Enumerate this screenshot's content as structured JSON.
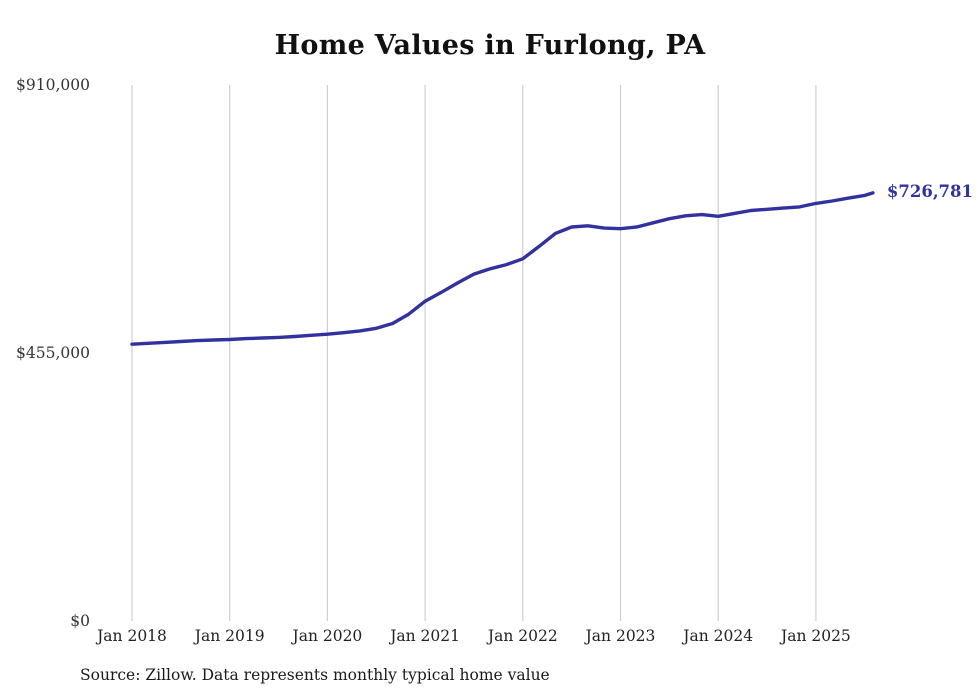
{
  "chart_data": {
    "type": "line",
    "title": "Home Values in Furlong, PA",
    "source_note": "Source: Zillow. Data represents monthly typical home value",
    "end_label": "$726,781",
    "end_value": 726781,
    "line_color": "#32329f",
    "grid_color": "#cfcfcf",
    "legend": "none",
    "grid": "vertical-only",
    "ylim": [
      0,
      910000
    ],
    "y_ticks": [
      {
        "label": "$0",
        "value": 0
      },
      {
        "label": "$455,000",
        "value": 455000
      },
      {
        "label": "$910,000",
        "value": 910000
      }
    ],
    "x_ticks": [
      {
        "label": "Jan 2018",
        "date": "2018-01"
      },
      {
        "label": "Jan 2019",
        "date": "2019-01"
      },
      {
        "label": "Jan 2020",
        "date": "2020-01"
      },
      {
        "label": "Jan 2021",
        "date": "2021-01"
      },
      {
        "label": "Jan 2022",
        "date": "2022-01"
      },
      {
        "label": "Jan 2023",
        "date": "2023-01"
      },
      {
        "label": "Jan 2024",
        "date": "2024-01"
      },
      {
        "label": "Jan 2025",
        "date": "2025-01"
      }
    ],
    "series": [
      {
        "name": "Monthly typical home value",
        "points": [
          {
            "date": "2018-01",
            "value": 470000
          },
          {
            "date": "2018-03",
            "value": 471500
          },
          {
            "date": "2018-05",
            "value": 473000
          },
          {
            "date": "2018-07",
            "value": 474500
          },
          {
            "date": "2018-09",
            "value": 476000
          },
          {
            "date": "2018-11",
            "value": 477000
          },
          {
            "date": "2019-01",
            "value": 478000
          },
          {
            "date": "2019-03",
            "value": 479500
          },
          {
            "date": "2019-05",
            "value": 480500
          },
          {
            "date": "2019-07",
            "value": 481500
          },
          {
            "date": "2019-09",
            "value": 483000
          },
          {
            "date": "2019-11",
            "value": 485000
          },
          {
            "date": "2020-01",
            "value": 487000
          },
          {
            "date": "2020-03",
            "value": 489500
          },
          {
            "date": "2020-05",
            "value": 492500
          },
          {
            "date": "2020-07",
            "value": 497000
          },
          {
            "date": "2020-09",
            "value": 505000
          },
          {
            "date": "2020-11",
            "value": 521000
          },
          {
            "date": "2021-01",
            "value": 543000
          },
          {
            "date": "2021-03",
            "value": 558000
          },
          {
            "date": "2021-05",
            "value": 574000
          },
          {
            "date": "2021-07",
            "value": 589000
          },
          {
            "date": "2021-09",
            "value": 598000
          },
          {
            "date": "2021-11",
            "value": 605000
          },
          {
            "date": "2022-01",
            "value": 615000
          },
          {
            "date": "2022-03",
            "value": 636000
          },
          {
            "date": "2022-05",
            "value": 658000
          },
          {
            "date": "2022-07",
            "value": 669000
          },
          {
            "date": "2022-09",
            "value": 671000
          },
          {
            "date": "2022-11",
            "value": 667000
          },
          {
            "date": "2023-01",
            "value": 666000
          },
          {
            "date": "2023-03",
            "value": 669000
          },
          {
            "date": "2023-05",
            "value": 676000
          },
          {
            "date": "2023-07",
            "value": 683000
          },
          {
            "date": "2023-09",
            "value": 688000
          },
          {
            "date": "2023-11",
            "value": 690000
          },
          {
            "date": "2024-01",
            "value": 687000
          },
          {
            "date": "2024-03",
            "value": 692000
          },
          {
            "date": "2024-05",
            "value": 697000
          },
          {
            "date": "2024-07",
            "value": 699000
          },
          {
            "date": "2024-09",
            "value": 701000
          },
          {
            "date": "2024-11",
            "value": 703000
          },
          {
            "date": "2025-01",
            "value": 709000
          },
          {
            "date": "2025-03",
            "value": 713000
          },
          {
            "date": "2025-05",
            "value": 718000
          },
          {
            "date": "2025-07",
            "value": 722500
          },
          {
            "date": "2025-08",
            "value": 726781
          }
        ]
      }
    ]
  }
}
